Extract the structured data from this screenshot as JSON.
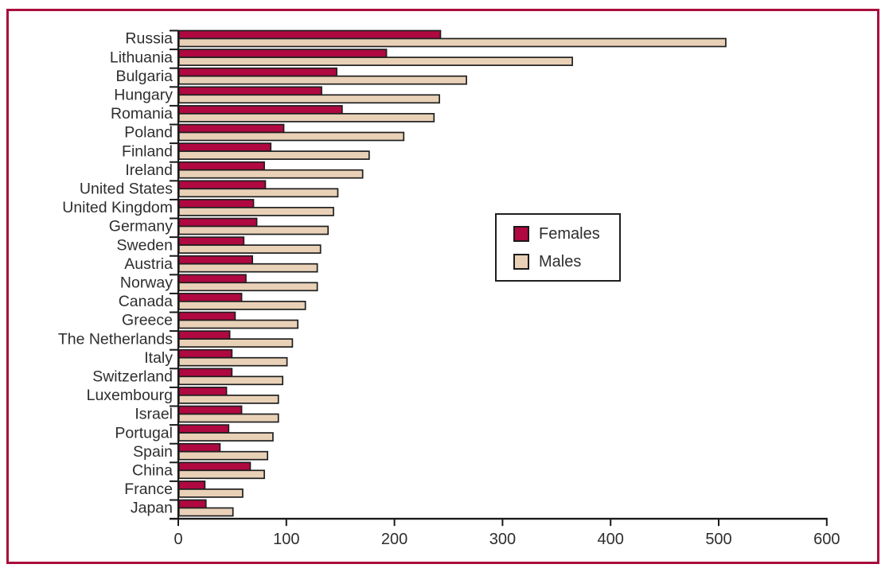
{
  "figure": {
    "frame_color": "#A80D3B",
    "background_color": "#FFFFFF"
  },
  "chart_data": {
    "type": "bar",
    "orientation": "horizontal",
    "title": "",
    "xlabel": "",
    "ylabel": "",
    "xlim": [
      0,
      600
    ],
    "xticks": [
      0,
      100,
      200,
      300,
      400,
      500,
      600
    ],
    "grid": false,
    "legend_position": "middle-right",
    "axis_color": "#1a1a1a",
    "bar_border_color": "#1f1f1f",
    "text_color": "#2e2e2e",
    "categories": [
      "Russia",
      "Lithuania",
      "Bulgaria",
      "Hungary",
      "Romania",
      "Poland",
      "Finland",
      "Ireland",
      "United States",
      "United Kingdom",
      "Germany",
      "Sweden",
      "Austria",
      "Norway",
      "Canada",
      "Greece",
      "The Netherlands",
      "Italy",
      "Switzerland",
      "Luxembourg",
      "Israel",
      "Portugal",
      "Spain",
      "China",
      "France",
      "Japan"
    ],
    "series": [
      {
        "name": "Females",
        "color": "#B00840",
        "values": [
          242,
          192,
          146,
          132,
          151,
          97,
          85,
          79,
          80,
          69,
          72,
          60,
          68,
          62,
          58,
          52,
          47,
          49,
          49,
          44,
          58,
          46,
          38,
          66,
          24,
          25
        ]
      },
      {
        "name": "Males",
        "color": "#E9D1B7",
        "values": [
          506,
          364,
          266,
          241,
          236,
          208,
          176,
          170,
          147,
          143,
          138,
          131,
          128,
          128,
          117,
          110,
          105,
          100,
          96,
          92,
          92,
          87,
          82,
          79,
          59,
          50
        ]
      }
    ]
  }
}
